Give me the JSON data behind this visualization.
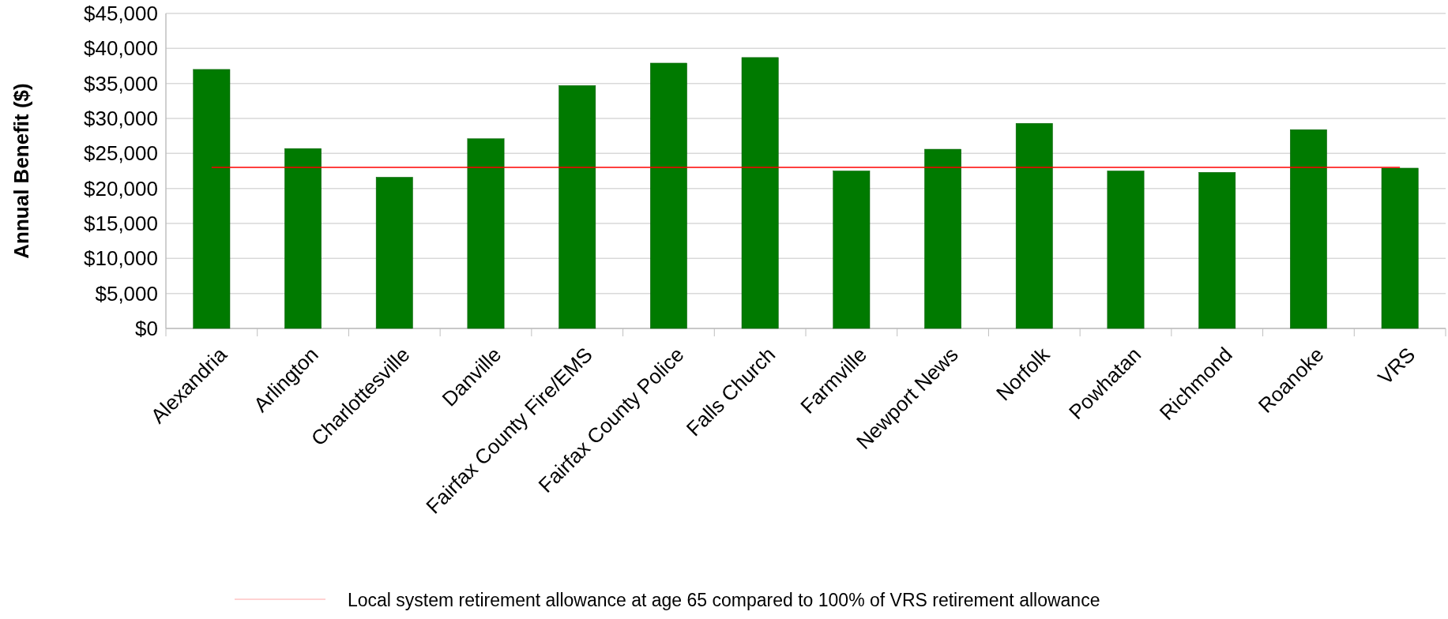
{
  "chart_data": {
    "type": "bar",
    "ylabel": "Annual Benefit ($)",
    "categories": [
      "Alexandria",
      "Arlington",
      "Charlottesville",
      "Danville",
      "Fairfax County Fire/EMS",
      "Fairfax County Police",
      "Falls Church",
      "Farmville",
      "Newport News",
      "Norfolk",
      "Powhatan",
      "Richmond",
      "Roanoke",
      "VRS"
    ],
    "values": [
      37000,
      25700,
      21600,
      27100,
      34700,
      37900,
      38700,
      22500,
      25600,
      29300,
      22500,
      22300,
      28400,
      22900
    ],
    "color": "#007a00",
    "ylim": [
      0,
      45000
    ],
    "yticks": [
      {
        "value": 0,
        "label": "$0"
      },
      {
        "value": 5000,
        "label": "$5,000"
      },
      {
        "value": 10000,
        "label": "$10,000"
      },
      {
        "value": 15000,
        "label": "$15,000"
      },
      {
        "value": 20000,
        "label": "$20,000"
      },
      {
        "value": 25000,
        "label": "$25,000"
      },
      {
        "value": 30000,
        "label": "$30,000"
      },
      {
        "value": 35000,
        "label": "$35,000"
      },
      {
        "value": 40000,
        "label": "$40,000"
      },
      {
        "value": 45000,
        "label": "$45,000"
      }
    ],
    "grid": "y",
    "ref_lines": [
      {
        "axis": "y",
        "value": 23000,
        "label": "Local system retirement allowance at age 65 compared to 100% of VRS retirement allowance",
        "color": "#ff0000"
      }
    ]
  }
}
